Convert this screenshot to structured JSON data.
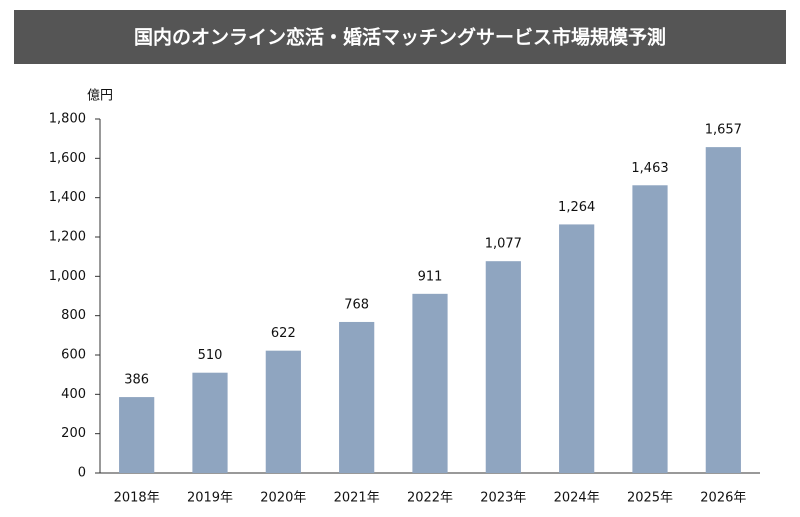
{
  "chart_data": {
    "type": "bar",
    "title": "国内のオンライン恋活・婚活マッチングサービス市場規模予測",
    "y_label": "億円",
    "categories": [
      "2018年",
      "2019年",
      "2020年",
      "2021年",
      "2022年",
      "2023年",
      "2024年",
      "2025年",
      "2026年"
    ],
    "values": [
      386,
      510,
      622,
      768,
      911,
      1077,
      1264,
      1463,
      1657
    ],
    "value_labels": [
      "386",
      "510",
      "622",
      "768",
      "911",
      "1,077",
      "1,264",
      "1,463",
      "1,657"
    ],
    "color": "#8fa5c0",
    "ylim": [
      0,
      1800
    ],
    "yticks": [
      0,
      200,
      400,
      600,
      800,
      {
        "value": 1000,
        "label": "1,000"
      },
      {
        "value": 1200,
        "label": "1,200"
      },
      {
        "value": 1400,
        "label": "1,400"
      },
      {
        "value": 1600,
        "label": "1,600"
      },
      {
        "value": 1800,
        "label": "1,800"
      }
    ],
    "grid": false
  }
}
